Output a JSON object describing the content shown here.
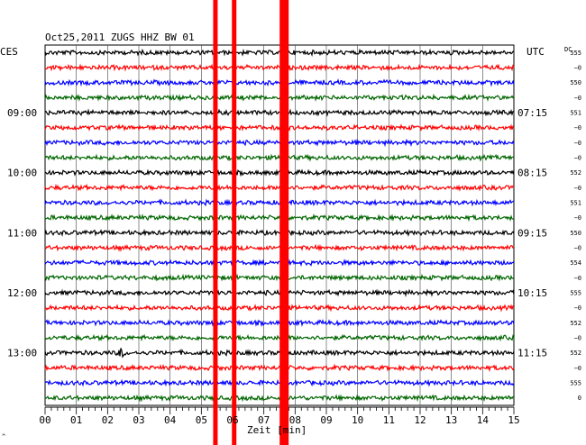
{
  "chart_data": {
    "type": "line",
    "title": "Oct25,2011   ZUGS HHZ BW 01",
    "left_label": "CES",
    "right_label": "UTC",
    "dc_label": "DC",
    "xlabel": "Zeit [min]",
    "xlim": [
      0,
      15
    ],
    "x_ticks": [
      "00",
      "01",
      "02",
      "03",
      "04",
      "05",
      "06",
      "07",
      "08",
      "09",
      "10",
      "11",
      "12",
      "13",
      "14",
      "15"
    ],
    "left_hours": [
      "09:00",
      "10:00",
      "11:00",
      "12:00",
      "13:00"
    ],
    "right_hours": [
      "07:15",
      "08:15",
      "09:15",
      "10:15",
      "11:15"
    ],
    "trace_colors": [
      "#000000",
      "#ff0000",
      "#0000ff",
      "#006600"
    ],
    "dc_values": [
      "555",
      "−0",
      "550",
      "−0",
      "551",
      "−0",
      "−0",
      "−0",
      "552",
      "−0",
      "551",
      "−0",
      "550",
      "−0",
      "554",
      "−0",
      "555",
      "−0",
      "552",
      "−0",
      "552",
      "−0",
      "555",
      "0"
    ],
    "red_marker_minutes": [
      5.45,
      6.05,
      7.65
    ],
    "event_minute": 2.45,
    "event_trace": 20,
    "footer_mark": "^"
  }
}
